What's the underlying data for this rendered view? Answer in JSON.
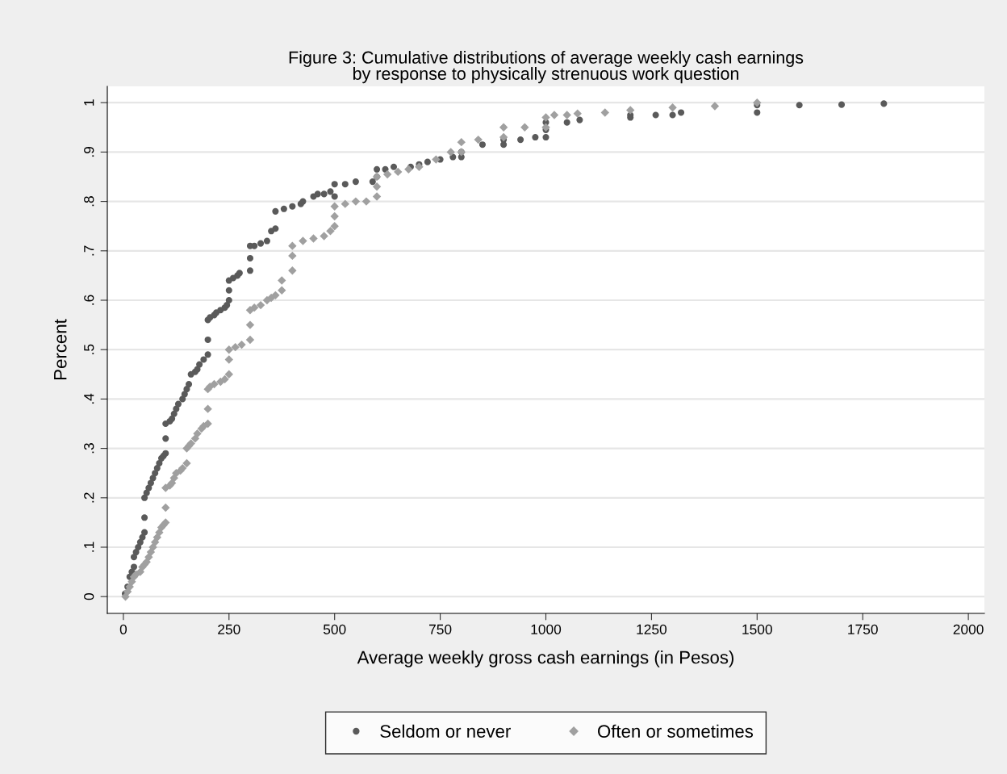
{
  "chart_data": {
    "type": "scatter",
    "title": "Figure 3: Cumulative distributions of average weekly cash earnings\nby response to physically strenuous work question",
    "xlabel": "Average weekly gross cash earnings (in Pesos)",
    "ylabel": "Percent",
    "xlim": [
      -38,
      2038
    ],
    "ylim": [
      -0.034,
      1.033
    ],
    "xticks": [
      0,
      250,
      500,
      750,
      1000,
      1250,
      1500,
      1750,
      2000
    ],
    "yticks": [
      0,
      {
        "value": 0.1,
        "label": ".1"
      },
      {
        "value": 0.2,
        "label": ".2"
      },
      {
        "value": 0.3,
        "label": ".3"
      },
      {
        "value": 0.4,
        "label": ".4"
      },
      {
        "value": 0.5,
        "label": ".5"
      },
      {
        "value": 0.6,
        "label": ".6"
      },
      {
        "value": 0.7,
        "label": ".7"
      },
      {
        "value": 0.8,
        "label": ".8"
      },
      {
        "value": 0.9,
        "label": ".9"
      },
      1
    ],
    "grid": "y",
    "legend": "bottom",
    "series": [
      {
        "name": "Seldom or never",
        "color": "#5a5a5a",
        "marker": "circle",
        "x": [
          4,
          10,
          15,
          20,
          25,
          25,
          30,
          35,
          40,
          45,
          50,
          50,
          50,
          55,
          60,
          65,
          70,
          75,
          80,
          85,
          90,
          95,
          100,
          100,
          100,
          110,
          115,
          120,
          125,
          130,
          140,
          145,
          150,
          155,
          160,
          170,
          175,
          180,
          190,
          200,
          200,
          200,
          205,
          215,
          220,
          230,
          240,
          245,
          250,
          250,
          250,
          260,
          270,
          275,
          300,
          300,
          300,
          310,
          325,
          340,
          350,
          360,
          360,
          380,
          400,
          420,
          425,
          450,
          460,
          475,
          490,
          500,
          500,
          525,
          550,
          590,
          600,
          600,
          620,
          640,
          680,
          700,
          720,
          750,
          780,
          800,
          800,
          850,
          900,
          900,
          940,
          975,
          1000,
          1000,
          1000,
          1050,
          1080,
          1200,
          1200,
          1260,
          1300,
          1320,
          1500,
          1500,
          1600,
          1700,
          1800
        ],
        "values": [
          0.006,
          0.02,
          0.04,
          0.05,
          0.06,
          0.08,
          0.09,
          0.1,
          0.11,
          0.12,
          0.13,
          0.16,
          0.2,
          0.21,
          0.22,
          0.23,
          0.24,
          0.25,
          0.26,
          0.27,
          0.28,
          0.285,
          0.29,
          0.32,
          0.35,
          0.355,
          0.36,
          0.37,
          0.38,
          0.39,
          0.4,
          0.41,
          0.42,
          0.43,
          0.45,
          0.455,
          0.46,
          0.47,
          0.48,
          0.49,
          0.52,
          0.56,
          0.565,
          0.57,
          0.575,
          0.58,
          0.585,
          0.59,
          0.6,
          0.62,
          0.64,
          0.645,
          0.65,
          0.655,
          0.66,
          0.685,
          0.71,
          0.71,
          0.715,
          0.72,
          0.74,
          0.745,
          0.78,
          0.785,
          0.79,
          0.795,
          0.8,
          0.81,
          0.815,
          0.815,
          0.82,
          0.81,
          0.835,
          0.835,
          0.84,
          0.84,
          0.85,
          0.865,
          0.865,
          0.87,
          0.87,
          0.875,
          0.88,
          0.885,
          0.89,
          0.89,
          0.9,
          0.915,
          0.915,
          0.925,
          0.925,
          0.93,
          0.93,
          0.945,
          0.96,
          0.96,
          0.965,
          0.97,
          0.975,
          0.975,
          0.975,
          0.98,
          0.98,
          0.995,
          0.995,
          0.996,
          0.998
        ]
      },
      {
        "name": "Often or sometimes",
        "color": "#a0a0a0",
        "marker": "diamond",
        "x": [
          5,
          10,
          15,
          20,
          25,
          30,
          40,
          45,
          50,
          55,
          60,
          65,
          70,
          75,
          80,
          85,
          90,
          95,
          100,
          100,
          100,
          110,
          115,
          120,
          125,
          135,
          140,
          150,
          150,
          155,
          160,
          170,
          175,
          185,
          190,
          200,
          200,
          200,
          205,
          215,
          230,
          240,
          250,
          250,
          250,
          265,
          280,
          300,
          300,
          300,
          310,
          325,
          340,
          350,
          360,
          375,
          375,
          400,
          400,
          400,
          425,
          450,
          475,
          490,
          500,
          500,
          500,
          525,
          550,
          575,
          600,
          600,
          600,
          625,
          650,
          675,
          700,
          740,
          775,
          800,
          800,
          840,
          900,
          900,
          950,
          1000,
          1000,
          1020,
          1050,
          1075,
          1140,
          1200,
          1300,
          1400,
          1500
        ],
        "values": [
          0.0,
          0.01,
          0.02,
          0.03,
          0.04,
          0.045,
          0.05,
          0.06,
          0.065,
          0.07,
          0.08,
          0.09,
          0.1,
          0.11,
          0.12,
          0.13,
          0.14,
          0.145,
          0.15,
          0.18,
          0.22,
          0.225,
          0.23,
          0.24,
          0.25,
          0.255,
          0.26,
          0.27,
          0.3,
          0.305,
          0.31,
          0.32,
          0.33,
          0.34,
          0.345,
          0.35,
          0.38,
          0.42,
          0.425,
          0.43,
          0.435,
          0.44,
          0.45,
          0.48,
          0.5,
          0.505,
          0.51,
          0.52,
          0.55,
          0.58,
          0.585,
          0.59,
          0.6,
          0.605,
          0.61,
          0.62,
          0.64,
          0.66,
          0.69,
          0.71,
          0.72,
          0.725,
          0.73,
          0.74,
          0.75,
          0.77,
          0.79,
          0.795,
          0.8,
          0.8,
          0.81,
          0.83,
          0.85,
          0.855,
          0.86,
          0.865,
          0.87,
          0.885,
          0.9,
          0.9,
          0.92,
          0.925,
          0.93,
          0.95,
          0.95,
          0.95,
          0.97,
          0.975,
          0.975,
          0.978,
          0.98,
          0.985,
          0.99,
          0.993,
          1.0
        ]
      }
    ]
  }
}
